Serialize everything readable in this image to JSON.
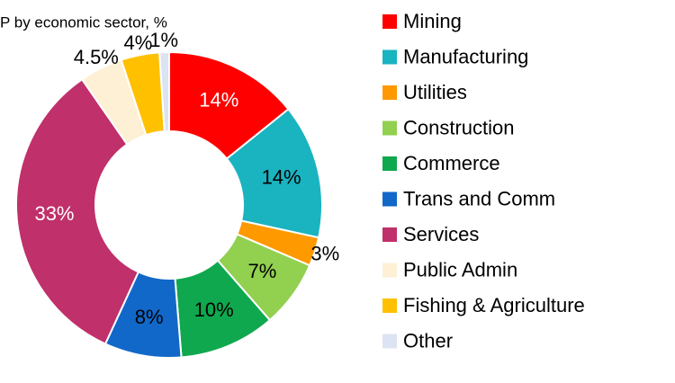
{
  "chart_data": {
    "type": "donut",
    "title": "P by economic sector, %",
    "categories": [
      "Mining",
      "Manufacturing",
      "Utilities",
      "Construction",
      "Commerce",
      "Trans and Comm",
      "Services",
      "Public Admin",
      "Fishing & Agriculture",
      "Other"
    ],
    "values": [
      14,
      14,
      3,
      7,
      10,
      8,
      33,
      4.5,
      4,
      1
    ],
    "value_labels": [
      "14%",
      "14%",
      "3%",
      "7%",
      "10%",
      "8%",
      "33%",
      "4.5%",
      "4%",
      "1%"
    ],
    "colors": [
      "#ff0000",
      "#1ab3c0",
      "#ff9900",
      "#92d050",
      "#10a84e",
      "#1168c8",
      "#c0306a",
      "#fdf0d4",
      "#ffc000",
      "#dce3f2"
    ],
    "legend": "right"
  }
}
